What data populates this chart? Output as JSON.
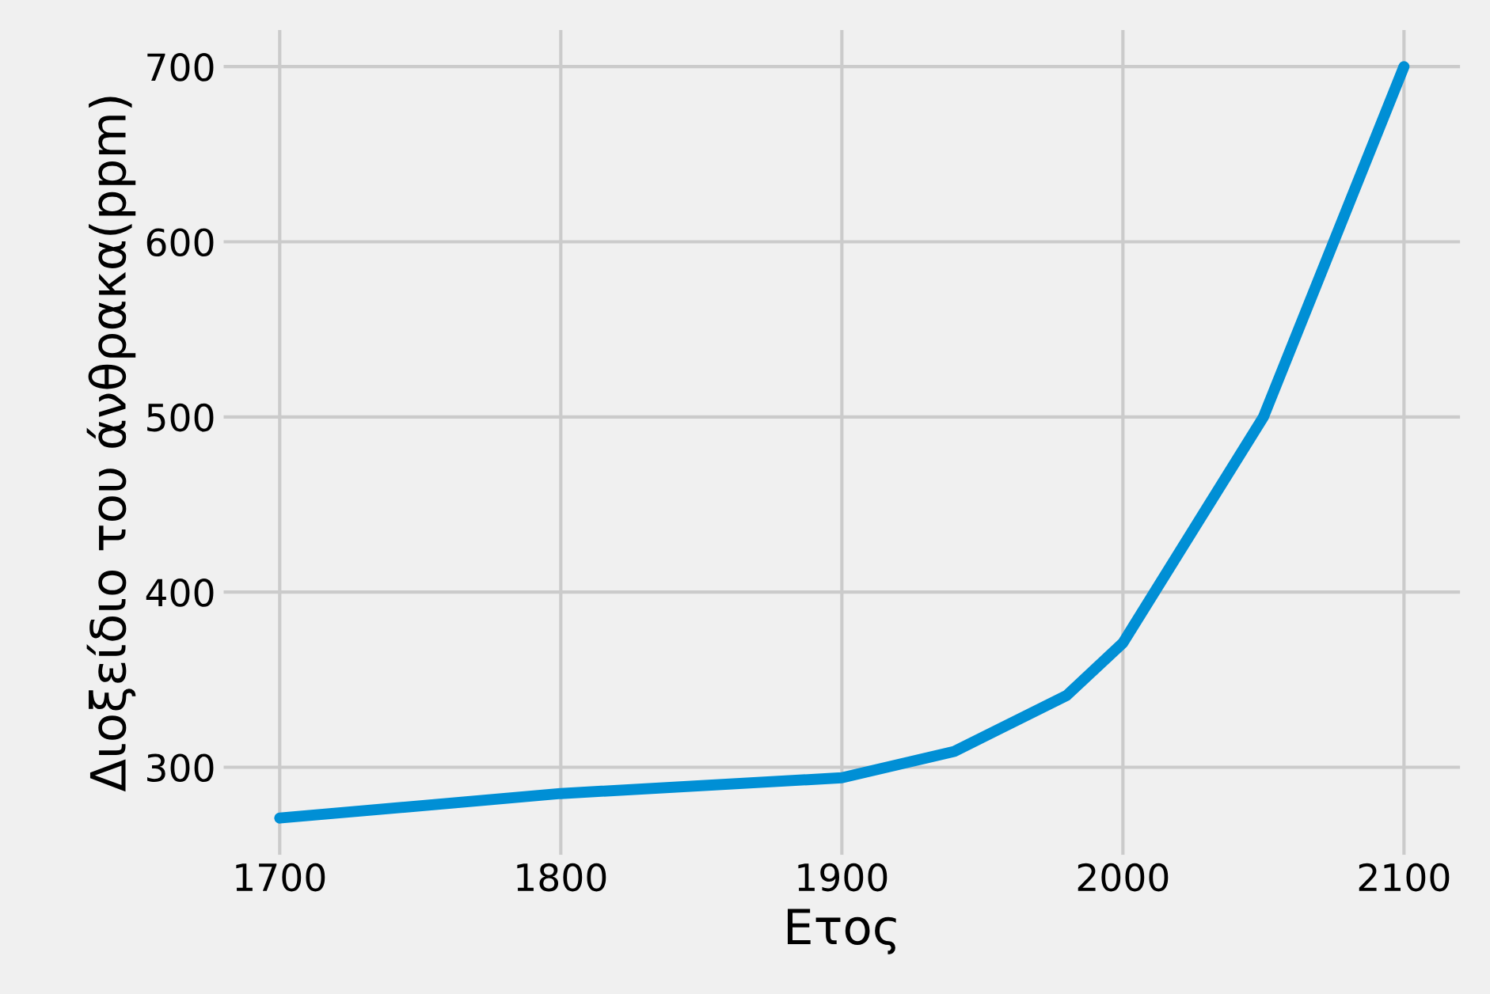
{
  "chart_data": {
    "type": "line",
    "xlabel": "Ετος",
    "ylabel": "Διοξείδιο του άνθρακα(ppm)",
    "x": [
      1700,
      1800,
      1900,
      1940,
      1980,
      2000,
      2050,
      2100
    ],
    "series": [
      {
        "color": "#008fd5",
        "values": [
          271,
          285,
          294,
          309,
          341,
          371,
          500,
          700
        ]
      }
    ],
    "xlim": [
      1680,
      2120
    ],
    "xticks": [
      1700,
      1800,
      1900,
      2000,
      2100
    ],
    "ylim": [
      250,
      721
    ],
    "yticks": [
      300,
      400,
      500,
      600,
      700
    ],
    "grid": true,
    "line_style": "solid"
  }
}
